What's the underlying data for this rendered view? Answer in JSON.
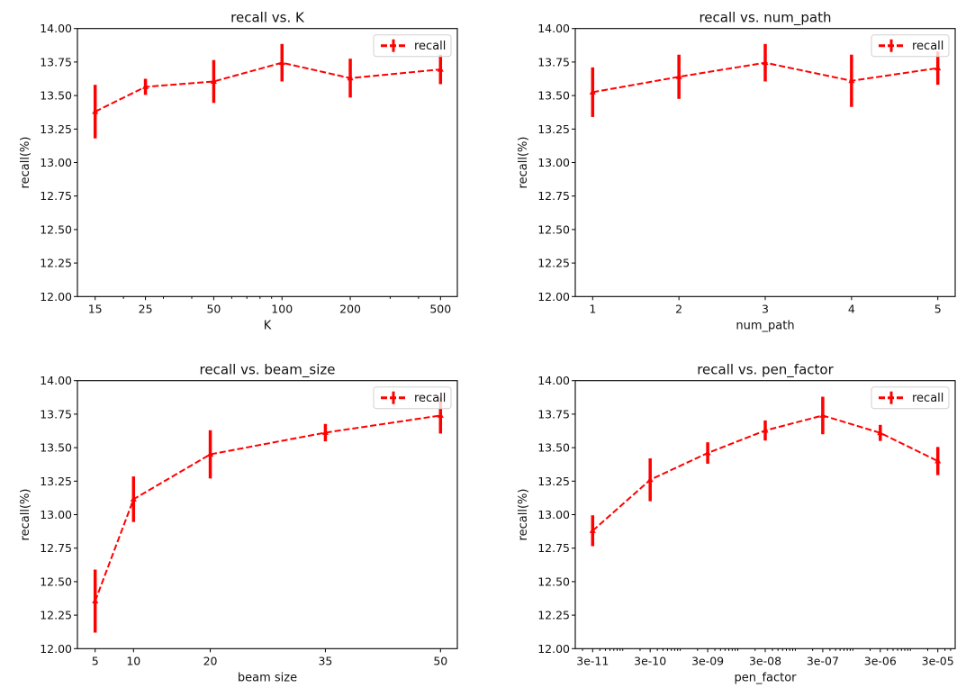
{
  "chart_data": [
    {
      "type": "line",
      "title": "recall vs. K",
      "xlabel": "K",
      "ylabel": "recall(%)",
      "xscale": "log",
      "x": [
        15,
        25,
        50,
        100,
        200,
        500
      ],
      "xticks": [
        15,
        25,
        50,
        100,
        200,
        500
      ],
      "xtick_labels": [
        "15",
        "25",
        "50",
        "100",
        "200",
        "500"
      ],
      "minor_xticks": [
        20,
        30,
        40,
        60,
        70,
        80,
        90,
        300,
        400
      ],
      "ylim": [
        12.0,
        14.0
      ],
      "yticks": [
        12.0,
        12.25,
        12.5,
        12.75,
        13.0,
        13.25,
        13.5,
        13.75,
        14.0
      ],
      "ytick_labels": [
        "12.00",
        "12.25",
        "12.50",
        "12.75",
        "13.00",
        "13.25",
        "13.50",
        "13.75",
        "14.00"
      ],
      "grid": false,
      "legend_position": "top-right",
      "series": [
        {
          "name": "recall",
          "color": "#ff0000",
          "linestyle": "dashed",
          "marker": "triangle",
          "values": [
            13.38,
            13.565,
            13.605,
            13.745,
            13.63,
            13.695
          ],
          "errors": [
            0.2,
            0.06,
            0.16,
            0.14,
            0.145,
            0.11
          ]
        }
      ]
    },
    {
      "type": "line",
      "title": "recall vs. num_path",
      "xlabel": "num_path",
      "ylabel": "recall(%)",
      "xscale": "linear",
      "x": [
        1,
        2,
        3,
        4,
        5
      ],
      "xticks": [
        1,
        2,
        3,
        4,
        5
      ],
      "xtick_labels": [
        "1",
        "2",
        "3",
        "4",
        "5"
      ],
      "minor_xticks": [],
      "ylim": [
        12.0,
        14.0
      ],
      "yticks": [
        12.0,
        12.25,
        12.5,
        12.75,
        13.0,
        13.25,
        13.5,
        13.75,
        14.0
      ],
      "ytick_labels": [
        "12.00",
        "12.25",
        "12.50",
        "12.75",
        "13.00",
        "13.25",
        "13.50",
        "13.75",
        "14.00"
      ],
      "grid": false,
      "legend_position": "top-right",
      "series": [
        {
          "name": "recall",
          "color": "#ff0000",
          "linestyle": "dashed",
          "marker": "triangle",
          "values": [
            13.525,
            13.64,
            13.745,
            13.61,
            13.705
          ],
          "errors": [
            0.185,
            0.165,
            0.14,
            0.195,
            0.125
          ]
        }
      ]
    },
    {
      "type": "line",
      "title": "recall vs. beam_size",
      "xlabel": "beam size",
      "ylabel": "recall(%)",
      "xscale": "linear",
      "x": [
        5,
        10,
        20,
        35,
        50
      ],
      "xticks": [
        5,
        10,
        20,
        35,
        50
      ],
      "xtick_labels": [
        "5",
        "10",
        "20",
        "35",
        "50"
      ],
      "minor_xticks": [],
      "ylim": [
        12.0,
        14.0
      ],
      "yticks": [
        12.0,
        12.25,
        12.5,
        12.75,
        13.0,
        13.25,
        13.5,
        13.75,
        14.0
      ],
      "ytick_labels": [
        "12.00",
        "12.25",
        "12.50",
        "12.75",
        "13.00",
        "13.25",
        "13.50",
        "13.75",
        "14.00"
      ],
      "grid": false,
      "legend_position": "top-right",
      "series": [
        {
          "name": "recall",
          "color": "#ff0000",
          "linestyle": "dashed",
          "marker": "triangle",
          "values": [
            12.355,
            13.115,
            13.45,
            13.612,
            13.74
          ],
          "errors": [
            0.235,
            0.17,
            0.18,
            0.065,
            0.135
          ]
        }
      ]
    },
    {
      "type": "line",
      "title": "recall vs. pen_factor",
      "xlabel": "pen_factor",
      "ylabel": "recall(%)",
      "xscale": "log",
      "x": [
        3e-11,
        3e-10,
        3e-09,
        3e-08,
        3e-07,
        3e-06,
        3e-05
      ],
      "xticks": [
        3e-11,
        3e-10,
        3e-09,
        3e-08,
        3e-07,
        3e-06,
        3e-05
      ],
      "xtick_labels": [
        "3e-11",
        "3e-10",
        "3e-09",
        "3e-08",
        "3e-07",
        "3e-06",
        "3e-05"
      ],
      "minor_xticks": "log-decade",
      "ylim": [
        12.0,
        14.0
      ],
      "yticks": [
        12.0,
        12.25,
        12.5,
        12.75,
        13.0,
        13.25,
        13.5,
        13.75,
        14.0
      ],
      "ytick_labels": [
        "12.00",
        "12.25",
        "12.50",
        "12.75",
        "13.00",
        "13.25",
        "13.50",
        "13.75",
        "14.00"
      ],
      "grid": false,
      "legend_position": "top-right",
      "series": [
        {
          "name": "recall",
          "color": "#ff0000",
          "linestyle": "dashed",
          "marker": "triangle",
          "values": [
            12.88,
            13.26,
            13.46,
            13.628,
            13.74,
            13.61,
            13.4
          ],
          "errors": [
            0.115,
            0.16,
            0.08,
            0.075,
            0.14,
            0.06,
            0.105
          ]
        }
      ]
    }
  ]
}
